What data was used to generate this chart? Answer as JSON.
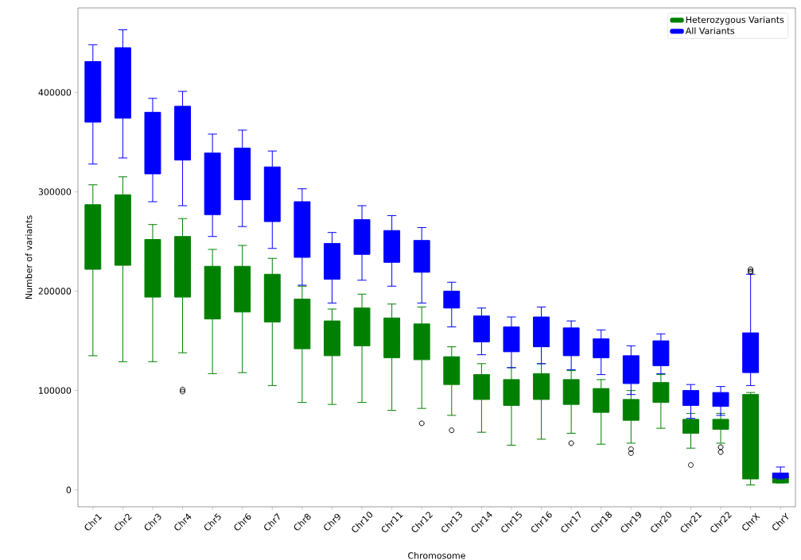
{
  "chart_data": {
    "type": "box",
    "xlabel": "Chromosome",
    "ylabel": "Number of variants",
    "categories": [
      "Chr1",
      "Chr2",
      "Chr3",
      "Chr4",
      "Chr5",
      "Chr6",
      "Chr7",
      "Chr8",
      "Chr9",
      "Chr10",
      "Chr11",
      "Chr12",
      "Chr13",
      "Chr14",
      "Chr15",
      "Chr16",
      "Chr17",
      "Chr18",
      "Chr19",
      "Chr20",
      "Chr21",
      "Chr22",
      "ChrX",
      "ChrY"
    ],
    "ylim": [
      -17000,
      485000
    ],
    "yticks": [
      0,
      100000,
      200000,
      300000,
      400000
    ],
    "legend": "top right",
    "series": [
      {
        "name": "Heterozygous Variants",
        "color": "#008000",
        "boxes": [
          {
            "low": 135000,
            "q1": 222000,
            "median": 255000,
            "q3": 287000,
            "high": 307000
          },
          {
            "low": 129000,
            "q1": 226000,
            "median": 261000,
            "q3": 297000,
            "high": 315000
          },
          {
            "low": 129000,
            "q1": 194000,
            "median": 223000,
            "q3": 252000,
            "high": 267000
          },
          {
            "low": 138000,
            "q1": 194000,
            "median": 225000,
            "q3": 255000,
            "high": 273000,
            "outliers": [
              101000,
              99000
            ]
          },
          {
            "low": 117000,
            "q1": 172000,
            "median": 198000,
            "q3": 225000,
            "high": 242000
          },
          {
            "low": 118000,
            "q1": 179000,
            "median": 202000,
            "q3": 225000,
            "high": 246000
          },
          {
            "low": 105000,
            "q1": 169000,
            "median": 193000,
            "q3": 217000,
            "high": 233000
          },
          {
            "low": 88000,
            "q1": 142000,
            "median": 167000,
            "q3": 192000,
            "high": 205000
          },
          {
            "low": 86000,
            "q1": 135000,
            "median": 152000,
            "q3": 170000,
            "high": 182000
          },
          {
            "low": 88000,
            "q1": 145000,
            "median": 164000,
            "q3": 183000,
            "high": 197000
          },
          {
            "low": 80000,
            "q1": 133000,
            "median": 153000,
            "q3": 173000,
            "high": 187000
          },
          {
            "low": 82000,
            "q1": 131000,
            "median": 149000,
            "q3": 167000,
            "high": 184000,
            "outliers": [
              67000
            ]
          },
          {
            "low": 75000,
            "q1": 106000,
            "median": 120000,
            "q3": 134000,
            "high": 144000,
            "outliers": [
              60000
            ]
          },
          {
            "low": 58000,
            "q1": 91000,
            "median": 103000,
            "q3": 116000,
            "high": 127000
          },
          {
            "low": 45000,
            "q1": 85000,
            "median": 98000,
            "q3": 111000,
            "high": 123000
          },
          {
            "low": 51000,
            "q1": 91000,
            "median": 104000,
            "q3": 117000,
            "high": 127000
          },
          {
            "low": 57000,
            "q1": 86000,
            "median": 98000,
            "q3": 111000,
            "high": 120000,
            "outliers": [
              47000
            ]
          },
          {
            "low": 46000,
            "q1": 78000,
            "median": 90000,
            "q3": 102000,
            "high": 111000
          },
          {
            "low": 47000,
            "q1": 70000,
            "median": 80000,
            "q3": 91000,
            "high": 100000,
            "outliers": [
              41000,
              37000
            ]
          },
          {
            "low": 62000,
            "q1": 88000,
            "median": 98000,
            "q3": 108000,
            "high": 116000
          },
          {
            "low": 42000,
            "q1": 57000,
            "median": 64000,
            "q3": 71000,
            "high": 77000,
            "outliers": [
              25000
            ]
          },
          {
            "low": 47000,
            "q1": 61000,
            "median": 66000,
            "q3": 71000,
            "high": 77000,
            "outliers": [
              43000,
              38000
            ]
          },
          {
            "low": 5000,
            "q1": 11000,
            "median": 53000,
            "q3": 96000,
            "high": 98000
          },
          {
            "low": 7000,
            "q1": 7000,
            "median": 10000,
            "q3": 13000,
            "high": 13000
          }
        ]
      },
      {
        "name": "All Variants",
        "color": "#0000ff",
        "boxes": [
          {
            "low": 328000,
            "q1": 370000,
            "median": 400000,
            "q3": 431000,
            "high": 448000
          },
          {
            "low": 334000,
            "q1": 374000,
            "median": 409000,
            "q3": 445000,
            "high": 463000
          },
          {
            "low": 290000,
            "q1": 318000,
            "median": 349000,
            "q3": 380000,
            "high": 394000
          },
          {
            "low": 286000,
            "q1": 332000,
            "median": 359000,
            "q3": 386000,
            "high": 401000
          },
          {
            "low": 255000,
            "q1": 277000,
            "median": 308000,
            "q3": 339000,
            "high": 358000
          },
          {
            "low": 265000,
            "q1": 292000,
            "median": 318000,
            "q3": 344000,
            "high": 362000
          },
          {
            "low": 243000,
            "q1": 270000,
            "median": 297000,
            "q3": 325000,
            "high": 341000
          },
          {
            "low": 206000,
            "q1": 234000,
            "median": 262000,
            "q3": 290000,
            "high": 303000
          },
          {
            "low": 188000,
            "q1": 212000,
            "median": 230000,
            "q3": 248000,
            "high": 259000
          },
          {
            "low": 211000,
            "q1": 237000,
            "median": 254000,
            "q3": 272000,
            "high": 286000
          },
          {
            "low": 205000,
            "q1": 229000,
            "median": 245000,
            "q3": 261000,
            "high": 276000
          },
          {
            "low": 188000,
            "q1": 219000,
            "median": 235000,
            "q3": 251000,
            "high": 264000
          },
          {
            "low": 164000,
            "q1": 183000,
            "median": 191000,
            "q3": 200000,
            "high": 209000
          },
          {
            "low": 136000,
            "q1": 149000,
            "median": 162000,
            "q3": 175000,
            "high": 183000
          },
          {
            "low": 123000,
            "q1": 139000,
            "median": 151000,
            "q3": 164000,
            "high": 174000
          },
          {
            "low": 127000,
            "q1": 144000,
            "median": 159000,
            "q3": 174000,
            "high": 184000
          },
          {
            "low": 121000,
            "q1": 135000,
            "median": 149000,
            "q3": 163000,
            "high": 170000
          },
          {
            "low": 116000,
            "q1": 133000,
            "median": 142000,
            "q3": 152000,
            "high": 161000
          },
          {
            "low": 96000,
            "q1": 107000,
            "median": 121000,
            "q3": 135000,
            "high": 145000
          },
          {
            "low": 117000,
            "q1": 125000,
            "median": 137000,
            "q3": 150000,
            "high": 157000
          },
          {
            "low": 72000,
            "q1": 85000,
            "median": 92000,
            "q3": 100000,
            "high": 106000
          },
          {
            "low": 75000,
            "q1": 84000,
            "median": 91000,
            "q3": 98000,
            "high": 104000
          },
          {
            "low": 105000,
            "q1": 118000,
            "median": 138000,
            "q3": 158000,
            "high": 217000,
            "outliers": [
              222000,
              220000,
              219000
            ]
          },
          {
            "low": 11000,
            "q1": 12000,
            "median": 14000,
            "q3": 17000,
            "high": 23000
          }
        ]
      }
    ]
  }
}
